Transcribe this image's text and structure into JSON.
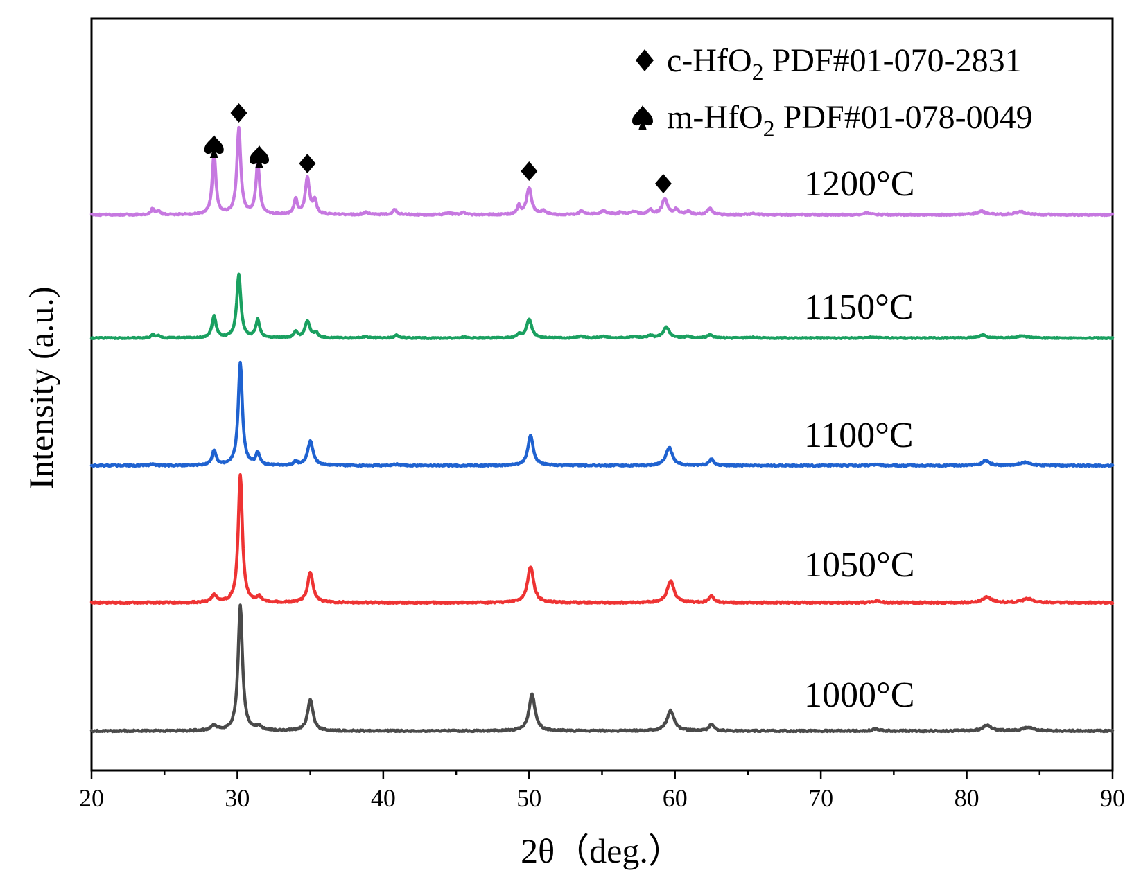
{
  "chart_data": {
    "type": "line",
    "title": "",
    "xlabel": "2θ（deg.）",
    "ylabel": "Intensity (a.u.)",
    "xlim": [
      20,
      90
    ],
    "xticks": [
      "20",
      "30",
      "40",
      "50",
      "60",
      "70",
      "80",
      "90"
    ],
    "legend": {
      "position": "top-right",
      "entries": [
        {
          "marker": "diamond",
          "label_prefix": "c-HfO",
          "label_sub": "2",
          "label_suffix": " PDF#01-070-2831"
        },
        {
          "marker": "spade",
          "label_prefix": "m-HfO",
          "label_sub": "2",
          "label_suffix": " PDF#01-078-0049"
        }
      ]
    },
    "peak_markers": [
      {
        "x": 28.4,
        "marker": "spade",
        "series": "1200°C"
      },
      {
        "x": 30.1,
        "marker": "diamond",
        "series": "1200°C"
      },
      {
        "x": 31.5,
        "marker": "spade",
        "series": "1200°C"
      },
      {
        "x": 34.8,
        "marker": "diamond",
        "series": "1200°C"
      },
      {
        "x": 50.0,
        "marker": "diamond",
        "series": "1200°C"
      },
      {
        "x": 59.2,
        "marker": "diamond",
        "series": "1200°C"
      }
    ],
    "series": [
      {
        "name": "1000°C",
        "color": "#4a4a4a",
        "baseline": 0.0,
        "peaks": [
          [
            28.4,
            0.04,
            0.25
          ],
          [
            30.2,
            1.0,
            0.18
          ],
          [
            31.5,
            0.03,
            0.25
          ],
          [
            35.0,
            0.25,
            0.22
          ],
          [
            50.2,
            0.29,
            0.25
          ],
          [
            59.7,
            0.16,
            0.3
          ],
          [
            62.5,
            0.05,
            0.2
          ],
          [
            73.8,
            0.015,
            0.3
          ],
          [
            81.4,
            0.045,
            0.35
          ],
          [
            84.2,
            0.03,
            0.45
          ]
        ]
      },
      {
        "name": "1050°C",
        "color": "#ee3333",
        "baseline": 1.0,
        "peaks": [
          [
            28.4,
            0.06,
            0.2
          ],
          [
            30.2,
            1.0,
            0.17
          ],
          [
            31.5,
            0.04,
            0.2
          ],
          [
            35.0,
            0.24,
            0.22
          ],
          [
            50.1,
            0.28,
            0.25
          ],
          [
            59.7,
            0.17,
            0.28
          ],
          [
            62.5,
            0.05,
            0.2
          ],
          [
            73.8,
            0.015,
            0.3
          ],
          [
            81.4,
            0.045,
            0.35
          ],
          [
            84.2,
            0.03,
            0.45
          ]
        ]
      },
      {
        "name": "1100°C",
        "color": "#1f62d0",
        "baseline": 1.93,
        "peaks": [
          [
            24.2,
            0.015,
            0.15
          ],
          [
            28.4,
            0.12,
            0.17
          ],
          [
            30.2,
            0.85,
            0.17
          ],
          [
            31.4,
            0.1,
            0.16
          ],
          [
            34.0,
            0.03,
            0.15
          ],
          [
            35.0,
            0.2,
            0.22
          ],
          [
            40.9,
            0.01,
            0.2
          ],
          [
            50.1,
            0.25,
            0.22
          ],
          [
            59.6,
            0.15,
            0.26
          ],
          [
            62.5,
            0.05,
            0.2
          ],
          [
            73.8,
            0.01,
            0.3
          ],
          [
            81.3,
            0.04,
            0.3
          ],
          [
            84.0,
            0.025,
            0.45
          ]
        ]
      },
      {
        "name": "1150°C",
        "color": "#1aa060",
        "baseline": 2.9,
        "peaks": [
          [
            24.2,
            0.04,
            0.14
          ],
          [
            24.6,
            0.025,
            0.12
          ],
          [
            28.4,
            0.24,
            0.17
          ],
          [
            30.1,
            0.7,
            0.17
          ],
          [
            31.4,
            0.2,
            0.16
          ],
          [
            34.0,
            0.07,
            0.15
          ],
          [
            34.8,
            0.19,
            0.2
          ],
          [
            35.4,
            0.06,
            0.15
          ],
          [
            38.8,
            0.015,
            0.2
          ],
          [
            40.9,
            0.03,
            0.18
          ],
          [
            45.5,
            0.01,
            0.2
          ],
          [
            49.3,
            0.04,
            0.15
          ],
          [
            50.0,
            0.21,
            0.22
          ],
          [
            53.6,
            0.02,
            0.2
          ],
          [
            55.1,
            0.02,
            0.3
          ],
          [
            57.2,
            0.015,
            0.3
          ],
          [
            58.3,
            0.03,
            0.2
          ],
          [
            59.4,
            0.12,
            0.25
          ],
          [
            60.9,
            0.02,
            0.2
          ],
          [
            62.4,
            0.04,
            0.2
          ],
          [
            65.4,
            0.01,
            0.3
          ],
          [
            73.5,
            0.01,
            0.3
          ],
          [
            81.1,
            0.035,
            0.3
          ],
          [
            83.8,
            0.025,
            0.4
          ]
        ]
      },
      {
        "name": "1200°C",
        "color": "#c678e0",
        "baseline": 3.85,
        "peaks": [
          [
            24.2,
            0.05,
            0.14
          ],
          [
            24.6,
            0.03,
            0.12
          ],
          [
            28.4,
            0.5,
            0.15
          ],
          [
            30.1,
            0.7,
            0.16
          ],
          [
            31.4,
            0.42,
            0.15
          ],
          [
            34.0,
            0.12,
            0.14
          ],
          [
            34.8,
            0.3,
            0.17
          ],
          [
            35.3,
            0.11,
            0.15
          ],
          [
            38.8,
            0.02,
            0.2
          ],
          [
            40.8,
            0.04,
            0.18
          ],
          [
            44.5,
            0.015,
            0.2
          ],
          [
            45.5,
            0.02,
            0.2
          ],
          [
            49.3,
            0.07,
            0.15
          ],
          [
            50.0,
            0.22,
            0.2
          ],
          [
            51.0,
            0.03,
            0.2
          ],
          [
            53.6,
            0.03,
            0.2
          ],
          [
            55.1,
            0.03,
            0.3
          ],
          [
            56.3,
            0.02,
            0.2
          ],
          [
            57.2,
            0.02,
            0.3
          ],
          [
            58.3,
            0.04,
            0.2
          ],
          [
            59.3,
            0.13,
            0.22
          ],
          [
            60.1,
            0.04,
            0.2
          ],
          [
            60.9,
            0.025,
            0.2
          ],
          [
            62.4,
            0.05,
            0.2
          ],
          [
            65.4,
            0.01,
            0.3
          ],
          [
            73.2,
            0.015,
            0.3
          ],
          [
            81.0,
            0.03,
            0.3
          ],
          [
            83.7,
            0.025,
            0.4
          ]
        ]
      }
    ]
  }
}
